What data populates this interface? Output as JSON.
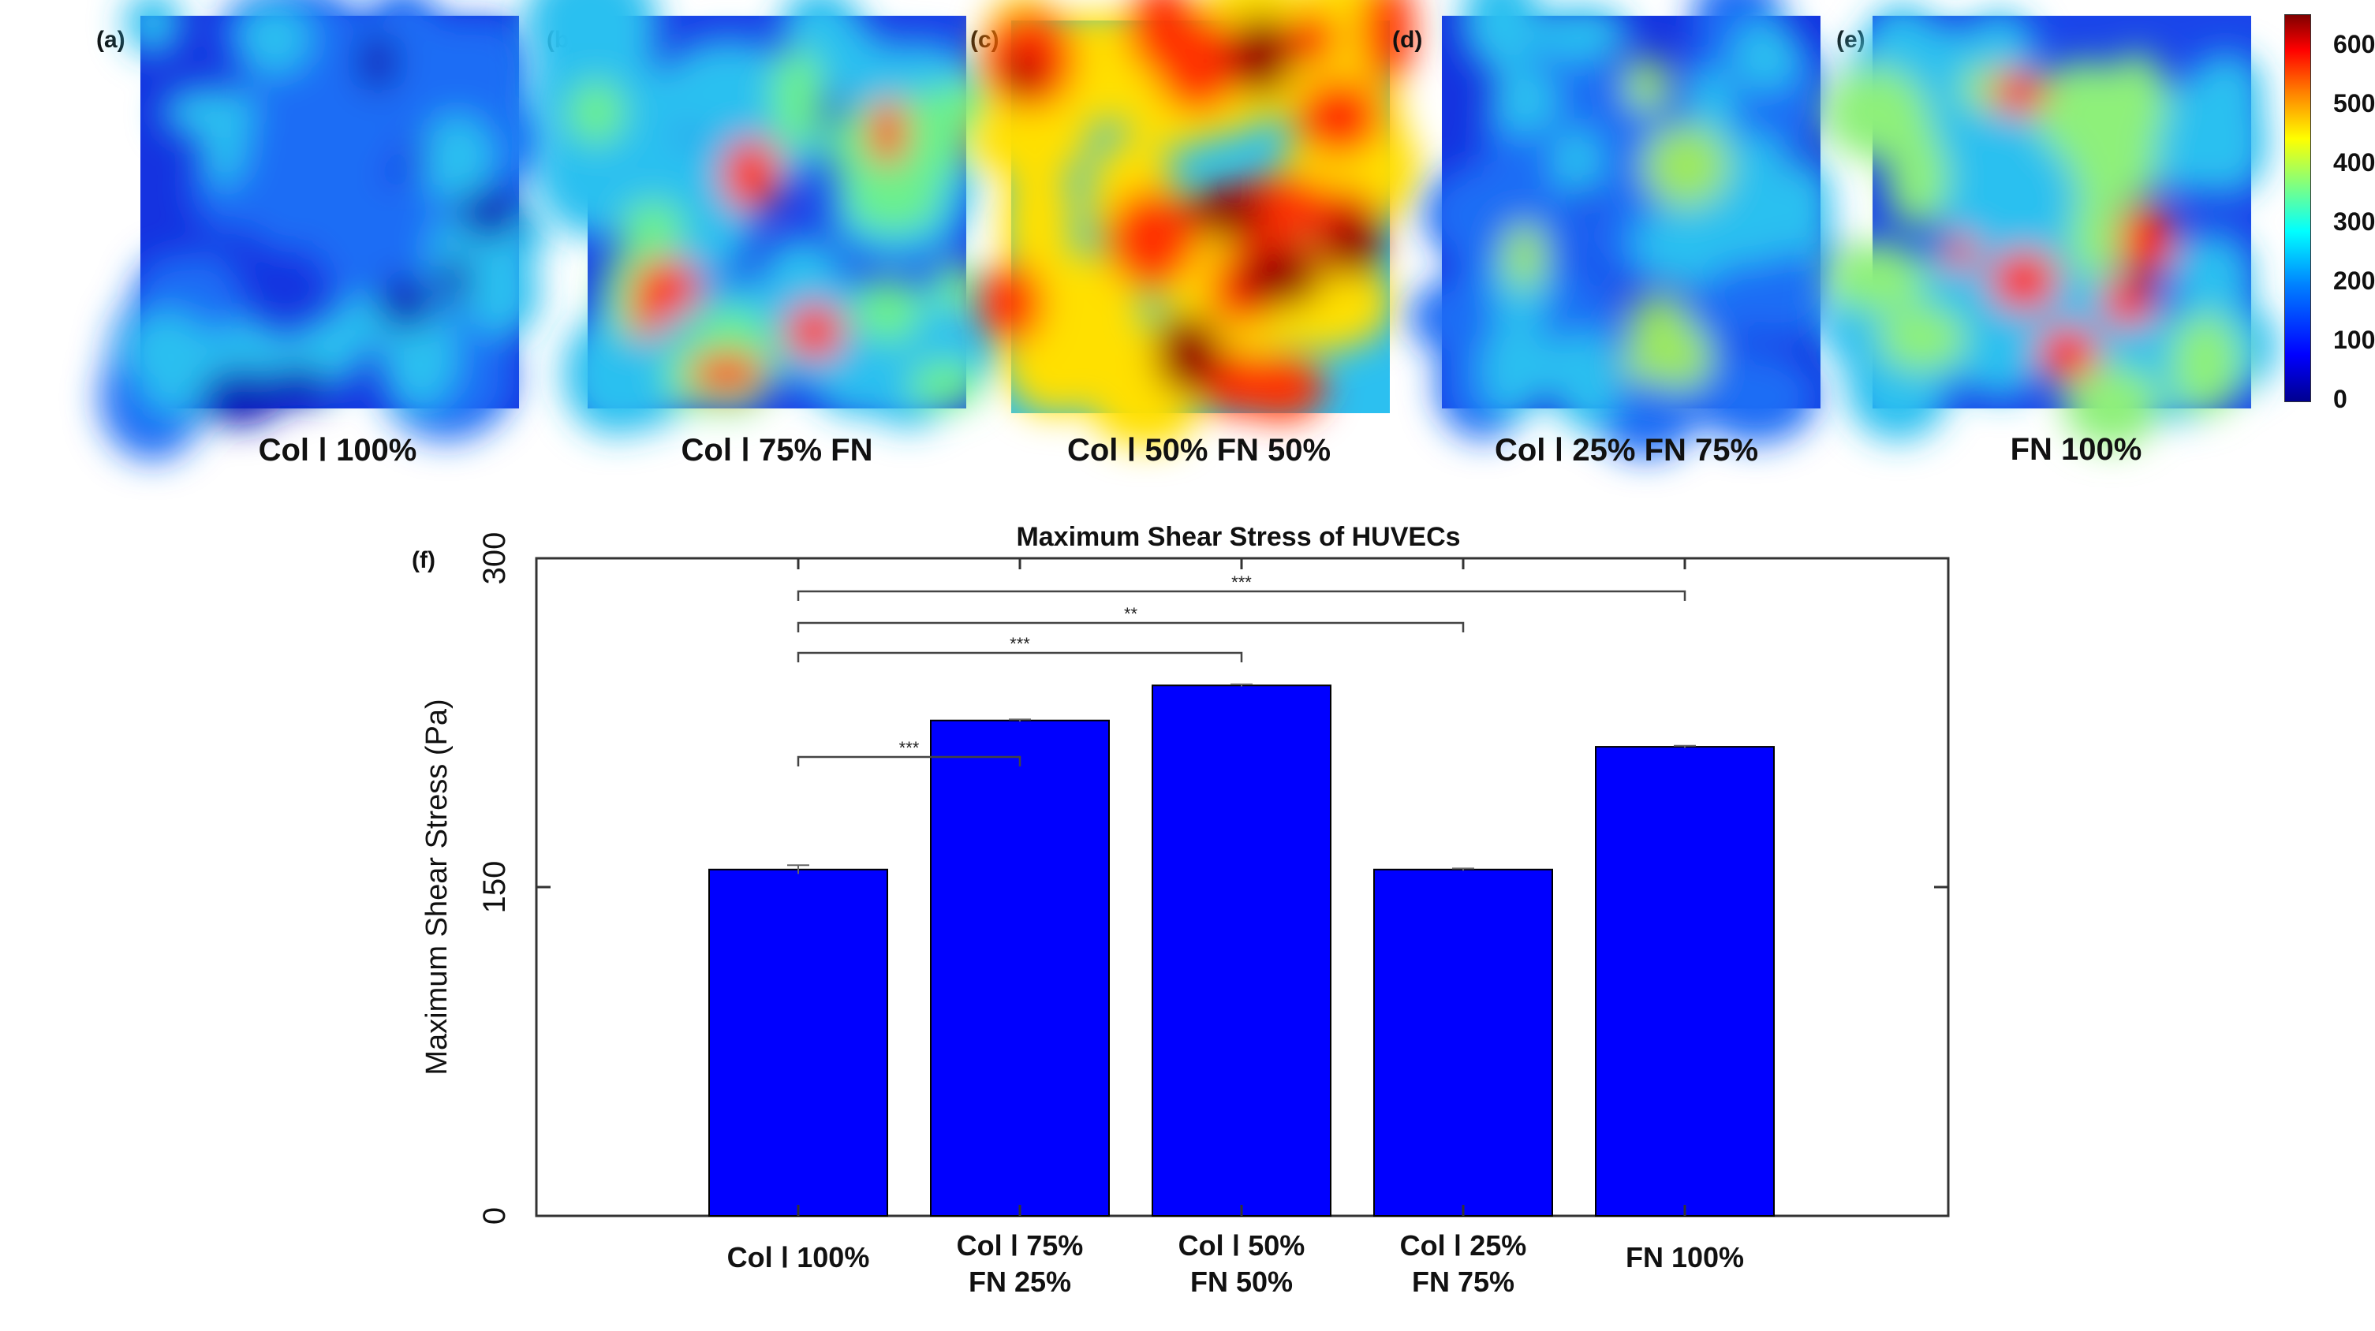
{
  "panels": [
    {
      "letter": "(a)",
      "caption": "Col Ⅰ 100%",
      "heatmap_colors": [
        "#1533e0",
        "#1d6df5",
        "#2cc0f0",
        "#0a1fb8"
      ]
    },
    {
      "letter": "(b)",
      "caption": "Col Ⅰ 75% FN",
      "heatmap_colors": [
        "#1a40e8",
        "#2cc0f0",
        "#6cf08c",
        "#ff3a10"
      ]
    },
    {
      "letter": "(c)",
      "caption": "Col Ⅰ 50% FN 50%",
      "heatmap_colors": [
        "#2cc0f0",
        "#ffe000",
        "#ff3000",
        "#990000"
      ]
    },
    {
      "letter": "(d)",
      "caption": "Col Ⅰ 25% FN 75%",
      "heatmap_colors": [
        "#1533e0",
        "#1d6df5",
        "#2cc0f0",
        "#9ce860"
      ]
    },
    {
      "letter": "(e)",
      "caption": "FN 100%",
      "heatmap_colors": [
        "#1a45ea",
        "#2cc0f0",
        "#8ef07a",
        "#ff2000"
      ]
    }
  ],
  "colorbar": {
    "ticks": [
      "600",
      "500",
      "400",
      "300",
      "200",
      "100",
      "0"
    ],
    "range": [
      0,
      650
    ]
  },
  "chart_panel_letter": "(f)",
  "chart_data": {
    "type": "bar",
    "title": "Maximum Shear Stress of HUVECs",
    "xlabel": "",
    "ylabel": "Maximum Shear Stress (Pa)",
    "ylim": [
      0,
      300
    ],
    "yticks": [
      "0",
      "150",
      "300"
    ],
    "categories": [
      [
        "Col Ⅰ  100%"
      ],
      [
        "Col Ⅰ  75%",
        "FN 25%"
      ],
      [
        "Col Ⅰ  50%",
        "FN 50%"
      ],
      [
        "Col Ⅰ  25%",
        "FN 75%"
      ],
      [
        "FN 100%"
      ]
    ],
    "values": [
      158,
      226,
      242,
      158,
      214
    ],
    "errors": [
      2,
      0.5,
      0.5,
      0.5,
      0.5
    ],
    "bar_color": "#0000ff",
    "grid": false,
    "significance": [
      {
        "from": 0,
        "to": 1,
        "label": "***"
      },
      {
        "from": 0,
        "to": 2,
        "label": "***"
      },
      {
        "from": 0,
        "to": 3,
        "label": "**"
      },
      {
        "from": 0,
        "to": 4,
        "label": "***"
      }
    ]
  }
}
